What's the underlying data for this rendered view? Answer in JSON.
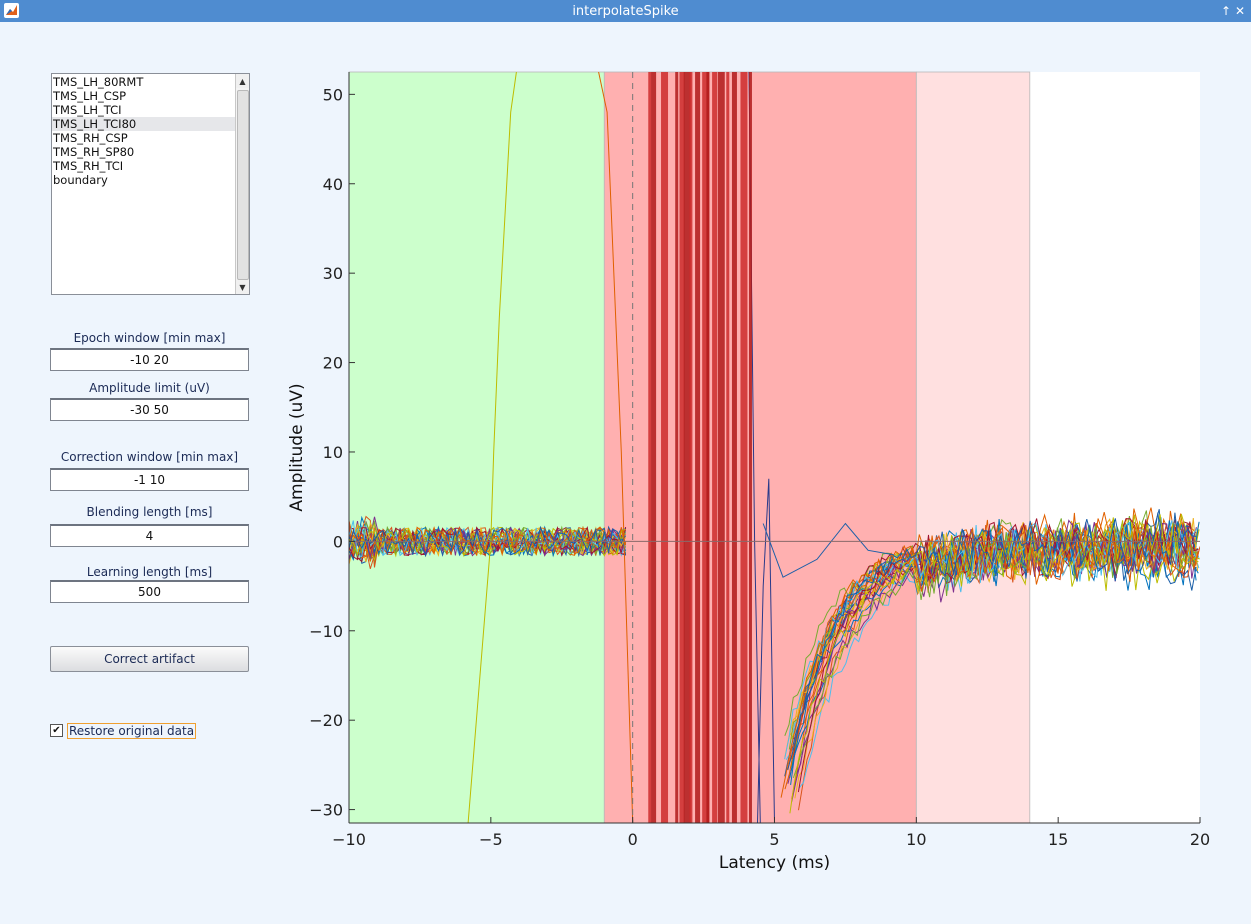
{
  "window": {
    "title": "interpolateSpike"
  },
  "event_list": {
    "items": [
      "TMS_LH_80RMT",
      "TMS_LH_CSP",
      "TMS_LH_TCI",
      "TMS_LH_TCI80",
      "TMS_RH_CSP",
      "TMS_RH_SP80",
      "TMS_RH_TCI",
      "boundary"
    ],
    "selected_index": 3
  },
  "controls": {
    "epoch_window": {
      "label": "Epoch window [min max]",
      "value": "-10 20"
    },
    "amplitude_limit": {
      "label": "Amplitude limit (uV)",
      "value": "-30 50"
    },
    "correction_window": {
      "label": "Correction window [min max]",
      "value": "-1 10"
    },
    "blending_length": {
      "label": "Blending length [ms]",
      "value": "4"
    },
    "learning_length": {
      "label": "Learning length [ms]",
      "value": "500"
    },
    "correct_button": {
      "label": "Correct artifact"
    },
    "restore_checkbox": {
      "label": "Restore original data",
      "checked": true
    }
  },
  "chart_data": {
    "type": "line",
    "xlabel": "Latency (ms)",
    "ylabel": "Amplitude (uV)",
    "xlim": [
      -10,
      20
    ],
    "ylim": [
      -31.5,
      52.5
    ],
    "xticks": [
      -10,
      -5,
      0,
      5,
      10,
      15,
      20
    ],
    "yticks": [
      -30,
      -20,
      -10,
      0,
      10,
      20,
      30,
      40,
      50
    ],
    "regions": [
      {
        "name": "baseline",
        "x": [
          -10,
          -1
        ],
        "color": "#ccffcc"
      },
      {
        "name": "correction",
        "x": [
          -1,
          10
        ],
        "color": "#ffb0b0"
      },
      {
        "name": "blending",
        "x": [
          10,
          14
        ],
        "color": "#ffe0e0"
      }
    ],
    "stimulus_marker_x": 0,
    "zero_line_y": 0,
    "trace_count": 30,
    "trace_colors": [
      "#0072bd",
      "#d95319",
      "#edb120",
      "#7e2f8e",
      "#77ac30",
      "#4dbeee",
      "#a2142f",
      "#bdbd00",
      "#e06000",
      "#1b5fa8"
    ]
  }
}
